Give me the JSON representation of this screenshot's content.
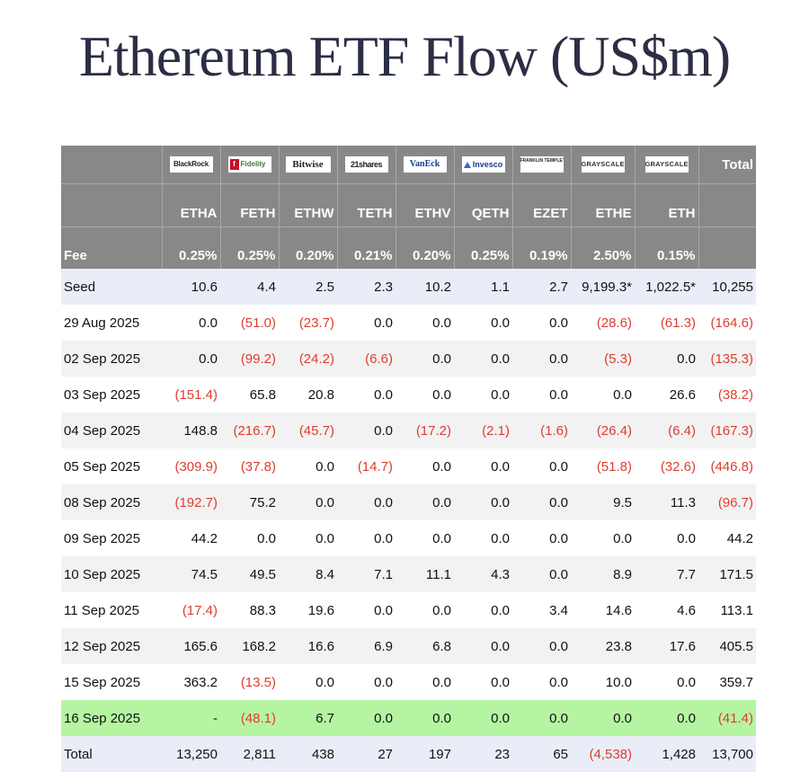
{
  "title": "Ethereum ETF Flow (US$m)",
  "issuer_logos": [
    "BlackRock",
    "Fidelity",
    "Bitwise",
    "21shares",
    "VanEck",
    "Invesco",
    "FRANKLIN TEMPLETON",
    "GRAYSCALE",
    "GRAYSCALE"
  ],
  "total_label": "Total",
  "fee_label": "Fee",
  "colors": {
    "header_bg": "#888888",
    "negative": "#e03c2e",
    "seed_row": "#e9edf7",
    "highlight_row": "#b5f5a2",
    "title": "#2b2e44"
  },
  "chart_data": {
    "type": "table",
    "title": "Ethereum ETF Flow (US$m)",
    "columns": [
      "ETHA",
      "FETH",
      "ETHW",
      "TETH",
      "ETHV",
      "QETH",
      "EZET",
      "ETHE",
      "ETH",
      "Total"
    ],
    "fees": [
      "0.25%",
      "0.25%",
      "0.20%",
      "0.21%",
      "0.20%",
      "0.25%",
      "0.19%",
      "2.50%",
      "0.15%",
      ""
    ],
    "rows": [
      {
        "label": "Seed",
        "values": [
          "10.6",
          "4.4",
          "2.5",
          "2.3",
          "10.2",
          "1.1",
          "2.7",
          "9,199.3*",
          "1,022.5*",
          "10,255"
        ]
      },
      {
        "label": "29 Aug 2025",
        "values": [
          "0.0",
          "(51.0)",
          "(23.7)",
          "0.0",
          "0.0",
          "0.0",
          "0.0",
          "(28.6)",
          "(61.3)",
          "(164.6)"
        ]
      },
      {
        "label": "02 Sep 2025",
        "values": [
          "0.0",
          "(99.2)",
          "(24.2)",
          "(6.6)",
          "0.0",
          "0.0",
          "0.0",
          "(5.3)",
          "0.0",
          "(135.3)"
        ]
      },
      {
        "label": "03 Sep 2025",
        "values": [
          "(151.4)",
          "65.8",
          "20.8",
          "0.0",
          "0.0",
          "0.0",
          "0.0",
          "0.0",
          "26.6",
          "(38.2)"
        ]
      },
      {
        "label": "04 Sep 2025",
        "values": [
          "148.8",
          "(216.7)",
          "(45.7)",
          "0.0",
          "(17.2)",
          "(2.1)",
          "(1.6)",
          "(26.4)",
          "(6.4)",
          "(167.3)"
        ]
      },
      {
        "label": "05 Sep 2025",
        "values": [
          "(309.9)",
          "(37.8)",
          "0.0",
          "(14.7)",
          "0.0",
          "0.0",
          "0.0",
          "(51.8)",
          "(32.6)",
          "(446.8)"
        ]
      },
      {
        "label": "08 Sep 2025",
        "values": [
          "(192.7)",
          "75.2",
          "0.0",
          "0.0",
          "0.0",
          "0.0",
          "0.0",
          "9.5",
          "11.3",
          "(96.7)"
        ]
      },
      {
        "label": "09 Sep 2025",
        "values": [
          "44.2",
          "0.0",
          "0.0",
          "0.0",
          "0.0",
          "0.0",
          "0.0",
          "0.0",
          "0.0",
          "44.2"
        ]
      },
      {
        "label": "10 Sep 2025",
        "values": [
          "74.5",
          "49.5",
          "8.4",
          "7.1",
          "11.1",
          "4.3",
          "0.0",
          "8.9",
          "7.7",
          "171.5"
        ]
      },
      {
        "label": "11 Sep 2025",
        "values": [
          "(17.4)",
          "88.3",
          "19.6",
          "0.0",
          "0.0",
          "0.0",
          "3.4",
          "14.6",
          "4.6",
          "113.1"
        ]
      },
      {
        "label": "12 Sep 2025",
        "values": [
          "165.6",
          "168.2",
          "16.6",
          "6.9",
          "6.8",
          "0.0",
          "0.0",
          "23.8",
          "17.6",
          "405.5"
        ]
      },
      {
        "label": "15 Sep 2025",
        "values": [
          "363.2",
          "(13.5)",
          "0.0",
          "0.0",
          "0.0",
          "0.0",
          "0.0",
          "10.0",
          "0.0",
          "359.7"
        ]
      },
      {
        "label": "16 Sep 2025",
        "values": [
          "-",
          "(48.1)",
          "6.7",
          "0.0",
          "0.0",
          "0.0",
          "0.0",
          "0.0",
          "0.0",
          "(41.4)"
        ]
      },
      {
        "label": "Total",
        "values": [
          "13,250",
          "2,811",
          "438",
          "27",
          "197",
          "23",
          "65",
          "(4,538)",
          "1,428",
          "13,700"
        ]
      }
    ]
  }
}
